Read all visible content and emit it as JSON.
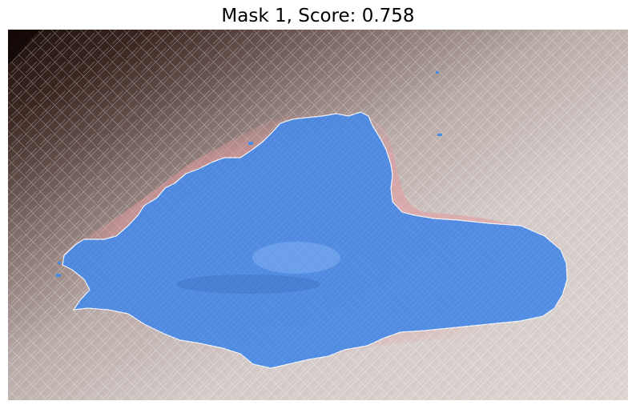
{
  "figure": {
    "title": "Mask 1, Score: 0.758"
  },
  "colors": {
    "skin_base": "#d9cfcc",
    "skin_shadow": "#2a1a16",
    "redness_halo": "#e8a7ab",
    "mask_fill": "#4a8be6",
    "mask_edge": "#f2f5fb"
  }
}
